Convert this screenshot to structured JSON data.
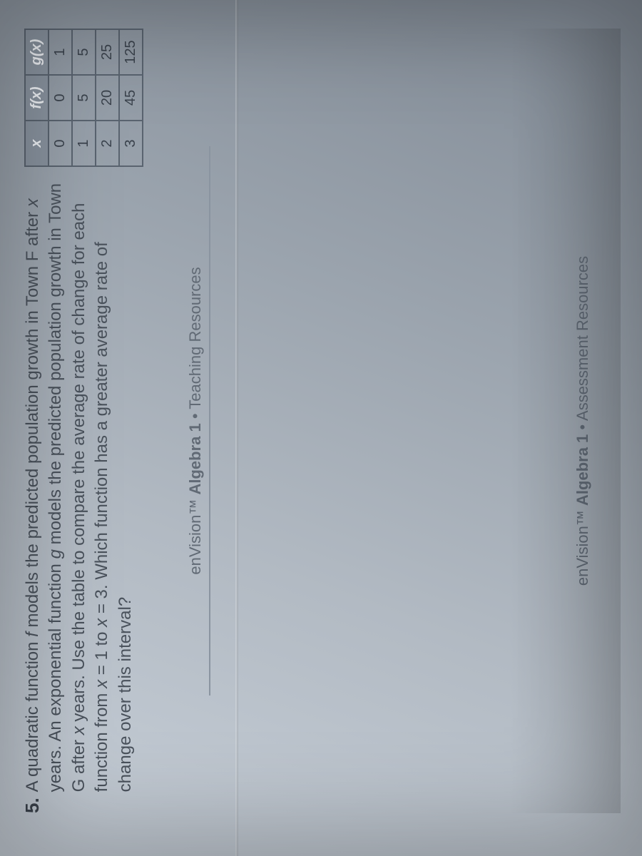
{
  "problem": {
    "number": "5.",
    "text_html": "A quadratic function <i>f</i> models the predicted population growth in Town F after <i>x</i> years. An exponential function <i>g</i> models the predicted population growth in Town G after <i>x</i> years. Use the table to compare the average rate of change for each function from <i>x</i> = 1 to <i>x</i> = 3. Which function has a greater average rate of change over this interval?"
  },
  "table": {
    "type": "table",
    "border_color": "#5a6470",
    "header_bg": "#8a94a0",
    "header_fg": "#f0f3f7",
    "cell_fontsize": 20,
    "columns": [
      "x",
      "f(x)",
      "g(x)"
    ],
    "rows": [
      [
        "0",
        "0",
        "1"
      ],
      [
        "1",
        "5",
        "5"
      ],
      [
        "2",
        "20",
        "25"
      ],
      [
        "3",
        "45",
        "125"
      ]
    ]
  },
  "footer_teaching": {
    "brand": "enVision™",
    "title": "Algebra 1",
    "sep": "•",
    "sub": "Teaching Resources"
  },
  "footer_assessment": {
    "brand": "enVision™",
    "title": "Algebra 1",
    "sep": "•",
    "sub": "Assessment Resources"
  },
  "colors": {
    "page_bg_light": "#c8d0d9",
    "page_bg_dark": "#808994",
    "text": "#4a525c"
  }
}
